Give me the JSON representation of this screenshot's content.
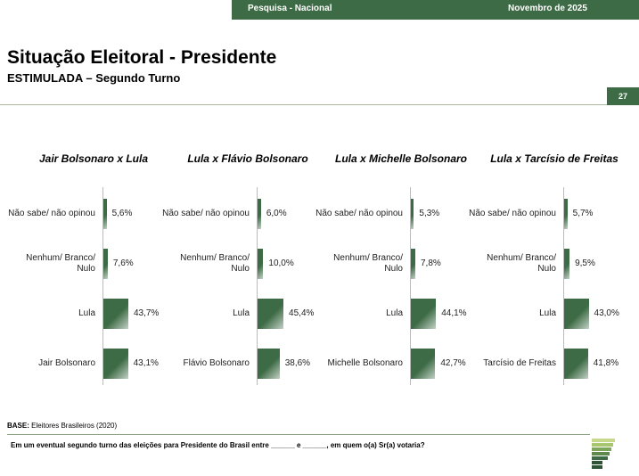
{
  "header": {
    "survey": "Pesquisa - Nacional",
    "date": "Novembro de 2025",
    "page": "27"
  },
  "title": "Situação Eleitoral - Presidente",
  "subtitle": "ESTIMULADA – Segundo Turno",
  "chart_data": [
    {
      "type": "bar",
      "orientation": "horizontal",
      "title": "Jair Bolsonaro x Lula",
      "color": "#3d6b45",
      "categories": [
        "Não sabe/ não opinou",
        "Nenhum/ Branco/\nNulo",
        "Lula",
        "Jair Bolsonaro"
      ],
      "values": [
        5.6,
        7.6,
        43.7,
        43.1
      ],
      "value_labels": [
        "5,6%",
        "7,6%",
        "43,7%",
        "43,1%"
      ]
    },
    {
      "type": "bar",
      "orientation": "horizontal",
      "title": "Lula x Flávio Bolsonaro",
      "color": "#3d6b45",
      "categories": [
        "Não sabe/ não opinou",
        "Nenhum/ Branco/\nNulo",
        "Lula",
        "Flávio Bolsonaro"
      ],
      "values": [
        6.0,
        10.0,
        45.4,
        38.6
      ],
      "value_labels": [
        "6,0%",
        "10,0%",
        "45,4%",
        "38,6%"
      ]
    },
    {
      "type": "bar",
      "orientation": "horizontal",
      "title": "Lula x Michelle Bolsonaro",
      "color": "#3d6b45",
      "categories": [
        "Não sabe/ não opinou",
        "Nenhum/ Branco/\nNulo",
        "Lula",
        "Michelle Bolsonaro"
      ],
      "values": [
        5.3,
        7.8,
        44.1,
        42.7
      ],
      "value_labels": [
        "5,3%",
        "7,8%",
        "44,1%",
        "42,7%"
      ]
    },
    {
      "type": "bar",
      "orientation": "horizontal",
      "title": "Lula x Tarcísio de Freitas",
      "color": "#3d6b45",
      "categories": [
        "Não sabe/ não opinou",
        "Nenhum/ Branco/\nNulo",
        "Lula",
        "Tarcísio de Freitas"
      ],
      "values": [
        5.7,
        9.5,
        43.0,
        41.8
      ],
      "value_labels": [
        "5,7%",
        "9,5%",
        "43,0%",
        "41,8%"
      ]
    }
  ],
  "footer": {
    "base_label": "BASE:",
    "base_text": "Eleitores Brasileiros (2020)",
    "question": "Em um eventual segundo turno das eleições para Presidente do Brasil entre ______ e ______, em quem o(a) Sr(a) votaria?"
  }
}
